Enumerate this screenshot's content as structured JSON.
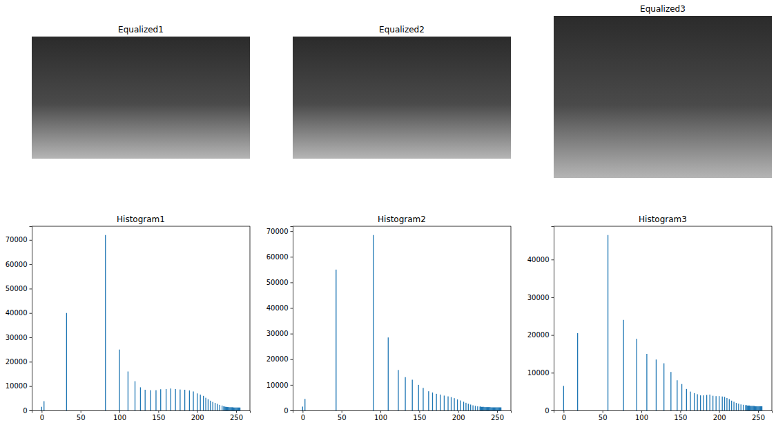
{
  "chart_data": [
    {
      "type": "image",
      "title": "Equalized1"
    },
    {
      "type": "image",
      "title": "Equalized2"
    },
    {
      "type": "image",
      "title": "Equalized3"
    },
    {
      "type": "bar",
      "title": "Histogram1",
      "color": "#1f77b4",
      "x": [
        0,
        3,
        32,
        82,
        100,
        111,
        120,
        127,
        133,
        140,
        147,
        153,
        160,
        166,
        172,
        178,
        184,
        190,
        195,
        200,
        204,
        208,
        211,
        214,
        217,
        220,
        223,
        226,
        229,
        232,
        234,
        235,
        236,
        237,
        238,
        239,
        240,
        241,
        242,
        243,
        244,
        245,
        246,
        247,
        248,
        249,
        250,
        251,
        252,
        253,
        254,
        255
      ],
      "values": [
        1500,
        3800,
        40000,
        72000,
        25000,
        16000,
        12000,
        9500,
        8500,
        8300,
        8300,
        8700,
        8800,
        9000,
        8800,
        8600,
        8500,
        8200,
        7800,
        7000,
        6500,
        6000,
        5200,
        4600,
        4000,
        3500,
        3100,
        2700,
        2300,
        2000,
        1700,
        1600,
        1500,
        1500,
        1400,
        1400,
        1400,
        1300,
        1300,
        1300,
        1300,
        1300,
        1300,
        1200,
        1200,
        1200,
        1200,
        1200,
        1200,
        1200,
        1200,
        1200
      ],
      "xlim": [
        -12.75,
        267.75
      ],
      "xticks": [
        0,
        50,
        100,
        150,
        200,
        250
      ],
      "ylim": [
        0,
        75600
      ],
      "yticks": [
        0,
        10000,
        20000,
        30000,
        40000,
        50000,
        60000,
        70000
      ]
    },
    {
      "type": "bar",
      "title": "Histogram2",
      "color": "#1f77b4",
      "x": [
        0,
        3,
        43,
        91,
        110,
        123,
        132,
        141,
        149,
        155,
        162,
        167,
        172,
        177,
        182,
        187,
        191,
        195,
        199,
        203,
        207,
        210,
        213,
        216,
        219,
        222,
        225,
        228,
        229,
        230,
        231,
        232,
        233,
        234,
        235,
        236,
        237,
        238,
        239,
        240,
        241,
        242,
        243,
        244,
        245,
        246,
        247,
        248,
        249,
        250,
        251,
        252,
        253,
        254,
        255
      ],
      "values": [
        1500,
        4500,
        55000,
        68500,
        28500,
        15800,
        13000,
        12000,
        10000,
        8800,
        7500,
        7000,
        6500,
        6200,
        5800,
        5500,
        5200,
        4800,
        4300,
        3900,
        3400,
        3000,
        2600,
        2300,
        2000,
        1800,
        1600,
        1500,
        1500,
        1400,
        1400,
        1400,
        1400,
        1300,
        1300,
        1300,
        1300,
        1300,
        1300,
        1300,
        1300,
        1200,
        1200,
        1200,
        1200,
        1200,
        1200,
        1200,
        1200,
        1200,
        1200,
        1200,
        1200,
        1200,
        1200
      ],
      "xlim": [
        -12.75,
        267.75
      ],
      "xticks": [
        0,
        50,
        100,
        150,
        200,
        250
      ],
      "ylim": [
        0,
        71925
      ],
      "yticks": [
        0,
        10000,
        20000,
        30000,
        40000,
        50000,
        60000,
        70000
      ]
    },
    {
      "type": "bar",
      "title": "Histogram3",
      "color": "#1f77b4",
      "x": [
        0,
        18,
        57,
        77,
        94,
        107,
        119,
        129,
        138,
        146,
        152,
        158,
        163,
        168,
        172,
        176,
        180,
        184,
        188,
        192,
        196,
        200,
        204,
        207,
        210,
        213,
        216,
        219,
        222,
        225,
        228,
        231,
        234,
        235,
        236,
        237,
        238,
        239,
        240,
        241,
        242,
        243,
        244,
        245,
        246,
        247,
        248,
        249,
        250,
        251,
        252,
        253,
        254,
        255
      ],
      "values": [
        6500,
        20500,
        46500,
        24000,
        19000,
        15000,
        13500,
        12500,
        10200,
        8000,
        7000,
        5700,
        5000,
        4600,
        4300,
        4000,
        4000,
        4100,
        4200,
        3900,
        3800,
        3800,
        3700,
        3600,
        3300,
        3000,
        2600,
        2300,
        2000,
        1800,
        1600,
        1500,
        1400,
        1400,
        1300,
        1300,
        1300,
        1300,
        1200,
        1200,
        1200,
        1200,
        1200,
        1200,
        1100,
        1100,
        1100,
        1100,
        1100,
        1100,
        1100,
        1100,
        1100,
        1100
      ],
      "xlim": [
        -12.75,
        267.75
      ],
      "xticks": [
        0,
        50,
        100,
        150,
        200,
        250
      ],
      "ylim": [
        0,
        48825
      ],
      "yticks": [
        0,
        10000,
        20000,
        30000,
        40000
      ]
    }
  ]
}
